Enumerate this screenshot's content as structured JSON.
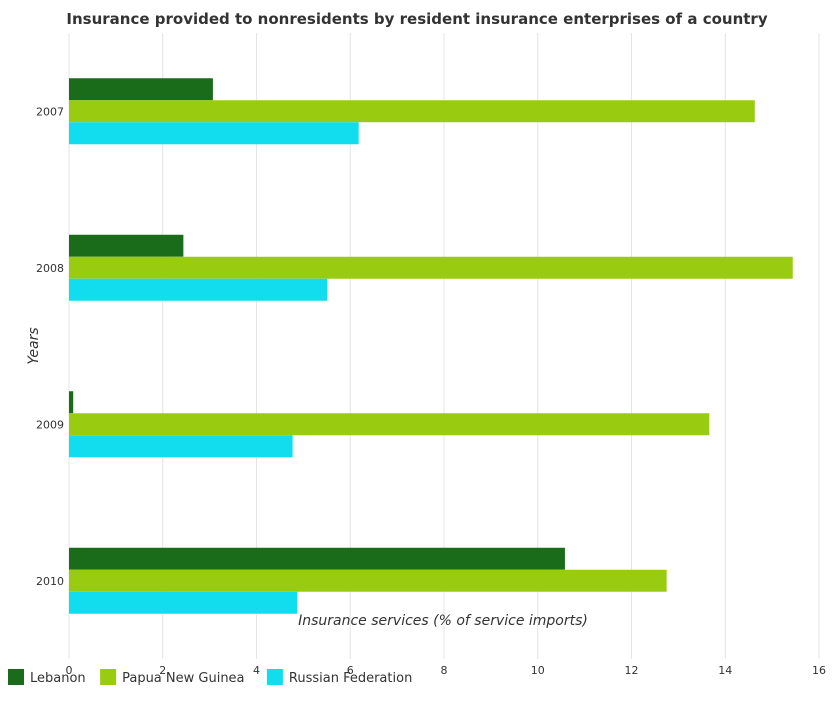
{
  "chart_data": {
    "type": "bar",
    "orientation": "horizontal",
    "title": "Insurance provided to nonresidents by resident insurance enterprises of a country",
    "xlabel": "Insurance services (% of service imports)",
    "ylabel": "Years",
    "categories": [
      "2007",
      "2008",
      "2009",
      "2010"
    ],
    "xlim": [
      0,
      16
    ],
    "xticks": [
      "0",
      "2",
      "4",
      "6",
      "8",
      "10",
      "12",
      "14",
      "16"
    ],
    "grid": true,
    "legend_position": "bottom-left",
    "series": [
      {
        "name": "Lebanon",
        "color": "#1a6b1a",
        "values": [
          3.07,
          2.44,
          0.09,
          10.58
        ]
      },
      {
        "name": "Papua New Guinea",
        "color": "#99cc11",
        "values": [
          14.63,
          15.44,
          13.66,
          12.75
        ]
      },
      {
        "name": "Russian Federation",
        "color": "#11ddee",
        "values": [
          6.18,
          5.51,
          4.77,
          4.87
        ]
      }
    ]
  }
}
